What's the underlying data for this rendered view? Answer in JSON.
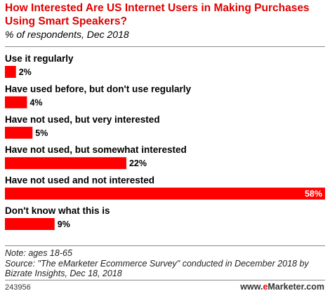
{
  "header": {
    "title": "How Interested Are US Internet Users in Making Purchases Using Smart Speakers?",
    "subtitle": "% of respondents, Dec 2018"
  },
  "chart_data": {
    "type": "bar",
    "orientation": "horizontal",
    "title": "How Interested Are US Internet Users in Making Purchases Using Smart Speakers?",
    "subtitle": "% of respondents, Dec 2018",
    "categories": [
      "Use it regularly",
      "Have used before, but don't use regularly",
      "Have not used, but very interested",
      "Have not used, but somewhat interested",
      "Have not used and not interested",
      "Don't know what this is"
    ],
    "values": [
      2,
      4,
      5,
      22,
      58,
      9
    ],
    "value_labels": [
      "2%",
      "4%",
      "5%",
      "22%",
      "58%",
      "9%"
    ],
    "unit": "%",
    "xlim": [
      0,
      58
    ],
    "bar_color": "#ff0000",
    "grid": false,
    "legend": "none"
  },
  "footer": {
    "note": "Note: ages 18-65",
    "source": "Source: \"The eMarketer Ecommerce Survey\" conducted in December 2018 by Bizrate Insights, Dec 18, 2018",
    "chart_id": "243956",
    "brand_prefix": "www.",
    "brand_e": "e",
    "brand_suffix": "Marketer.com"
  }
}
